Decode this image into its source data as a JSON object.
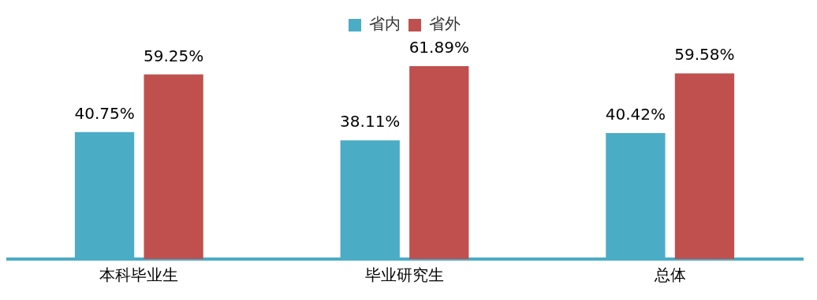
{
  "chart_data": {
    "type": "bar",
    "categories": [
      "本科毕业生",
      "毕业研究生",
      "总体"
    ],
    "series": [
      {
        "name": "省内",
        "color": "#4bacc6",
        "values": [
          40.75,
          38.11,
          40.42
        ],
        "value_labels": [
          "40.75%",
          "38.11%",
          "40.42%"
        ]
      },
      {
        "name": "省外",
        "color": "#c0504d",
        "values": [
          59.25,
          61.89,
          59.58
        ],
        "value_labels": [
          "59.25%",
          "61.89%",
          "59.58%"
        ]
      }
    ],
    "legend": "top",
    "grid": false
  }
}
